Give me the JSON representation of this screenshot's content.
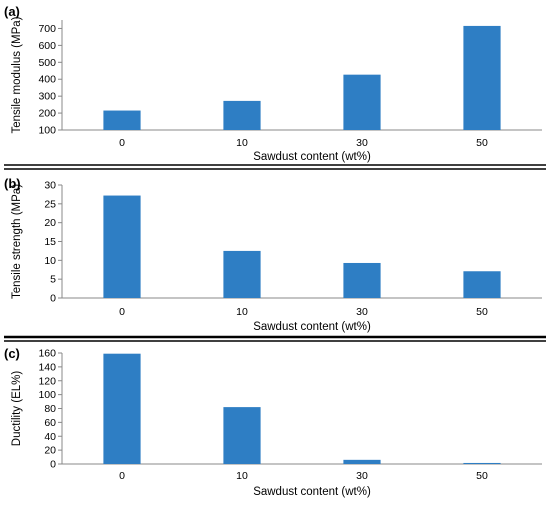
{
  "chart_data": [
    {
      "type": "bar",
      "panel_label": "(a)",
      "title": "",
      "categories": [
        "0",
        "10",
        "30",
        "50"
      ],
      "values": [
        215,
        272,
        427,
        715
      ],
      "xlabel": "Sawdust content (wt%)",
      "ylabel": "Tensile modulus (MPa)",
      "ylim": [
        100,
        750
      ],
      "yticks": [
        "100",
        "200",
        "300",
        "400",
        "500",
        "600",
        "700"
      ],
      "grid": false,
      "bar_color": "#2e7ec4"
    },
    {
      "type": "bar",
      "panel_label": "(b)",
      "title": "",
      "categories": [
        "0",
        "10",
        "30",
        "50"
      ],
      "values": [
        27.2,
        12.5,
        9.3,
        7.1
      ],
      "xlabel": "Sawdust content (wt%)",
      "ylabel": "Tensile strength (MPa)",
      "ylim": [
        0,
        30
      ],
      "yticks": [
        "0",
        "5",
        "10",
        "15",
        "20",
        "25",
        "30"
      ],
      "grid": false,
      "bar_color": "#2e7ec4"
    },
    {
      "type": "bar",
      "panel_label": "(c)",
      "title": "",
      "categories": [
        "0",
        "10",
        "30",
        "50"
      ],
      "values": [
        159,
        82,
        6,
        1.5
      ],
      "xlabel": "Sawdust content (wt%)",
      "ylabel": "Ductility (EL%)",
      "ylim": [
        0,
        160
      ],
      "yticks": [
        "0",
        "20",
        "40",
        "60",
        "80",
        "100",
        "120",
        "140",
        "160"
      ],
      "grid": false,
      "bar_color": "#2e7ec4"
    }
  ]
}
